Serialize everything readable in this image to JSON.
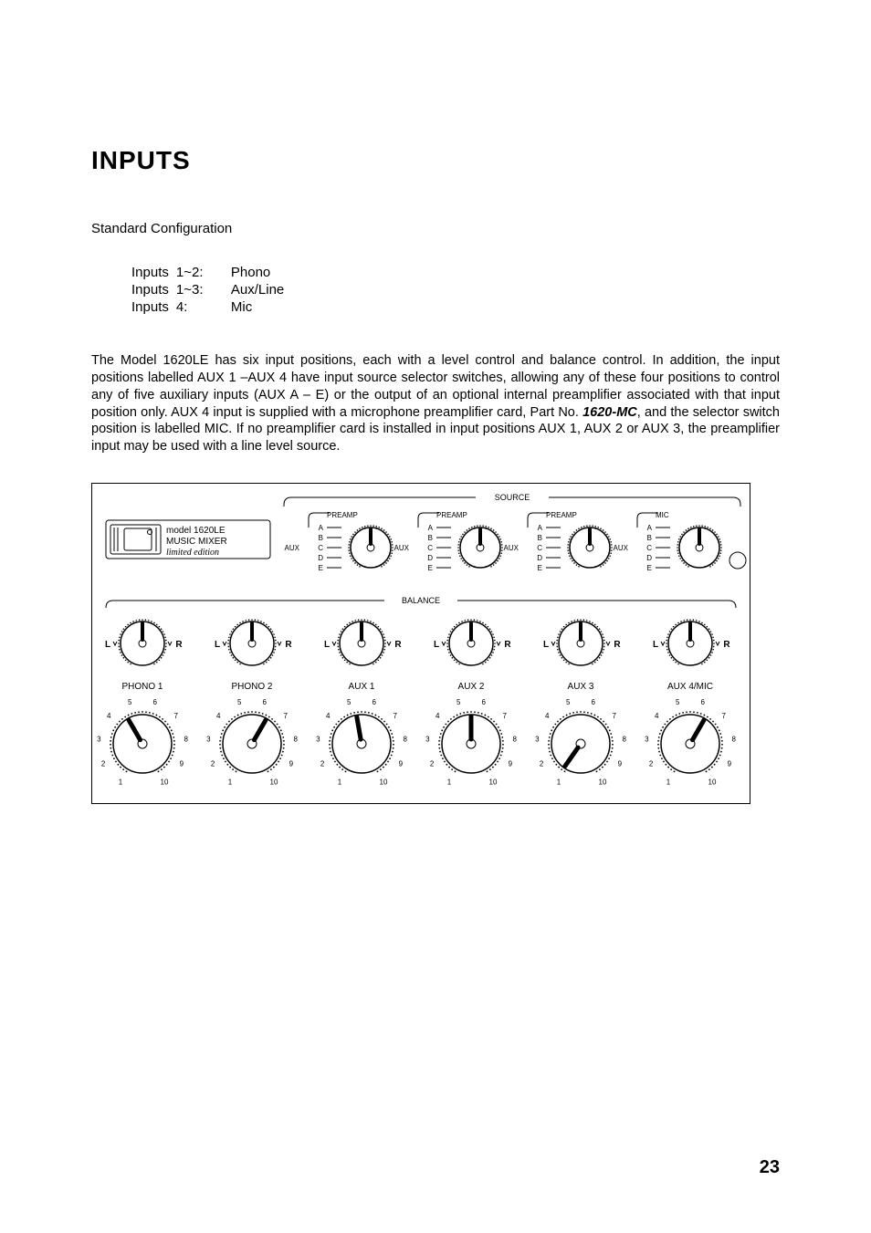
{
  "heading": "INPUTS",
  "subheading": "Standard Configuration",
  "config": [
    {
      "label": "Inputs",
      "range": "1~2:",
      "type": "Phono"
    },
    {
      "label": "Inputs",
      "range": "1~3:",
      "type": "Aux/Line"
    },
    {
      "label": "Inputs",
      "range": "4:",
      "type": "Mic"
    }
  ],
  "paragraph_parts": {
    "a": "The Model 1620LE has six input positions, each with a level control and balance control.  In addition, the input positions labelled AUX 1 –AUX 4 have input source selector switches, allowing any of these four positions to control any of five auxiliary inputs (AUX A – E) or the output of an optional internal preamplifier associated with that input position only.  AUX 4 input is supplied with a microphone preamplifier card, Part No. ",
    "b": "1620-MC",
    "c": ", and the selector switch position is labelled MIC.  If no preamplifier card is installed in input positions AUX 1, AUX 2 or AUX 3, the preamplifier input may be used with a line level source."
  },
  "page_number": "23",
  "diagram": {
    "source_label": "SOURCE",
    "balance_label": "BALANCE",
    "logo": {
      "line1": "model 1620LE",
      "line2": "MUSIC MIXER",
      "line3": "limited edition"
    },
    "source_cols": [
      {
        "top": "PREAMP",
        "rows": [
          "A",
          "B",
          "C",
          "D",
          "E"
        ],
        "aux": "AUX",
        "pointer_angle": 0,
        "has_small_knob": false
      },
      {
        "top": "PREAMP",
        "rows": [
          "A",
          "B",
          "C",
          "D",
          "E"
        ],
        "aux": "AUX",
        "pointer_angle": 0,
        "has_small_knob": false
      },
      {
        "top": "PREAMP",
        "rows": [
          "A",
          "B",
          "C",
          "D",
          "E"
        ],
        "aux": "AUX",
        "pointer_angle": 0,
        "has_small_knob": false
      },
      {
        "top": "MIC",
        "rows": [
          "A",
          "B",
          "C",
          "D",
          "E"
        ],
        "aux": "AUX",
        "pointer_angle": 0,
        "has_small_knob": true
      }
    ],
    "balance_knobs": [
      {
        "L": "L",
        "R": "R",
        "angle": 0
      },
      {
        "L": "L",
        "R": "R",
        "angle": 0
      },
      {
        "L": "L",
        "R": "R",
        "angle": 0
      },
      {
        "L": "L",
        "R": "R",
        "angle": 0
      },
      {
        "L": "L",
        "R": "R",
        "angle": 0
      },
      {
        "L": "L",
        "R": "R",
        "angle": 0
      }
    ],
    "level_knobs": [
      {
        "label": "PHONO 1",
        "angle": -30
      },
      {
        "label": "PHONO 2",
        "angle": 30
      },
      {
        "label": "AUX 1",
        "angle": -10
      },
      {
        "label": "AUX 2",
        "angle": 0
      },
      {
        "label": "AUX 3",
        "angle": -145
      },
      {
        "label": "AUX 4/MIC",
        "angle": 30
      }
    ],
    "level_numbers": [
      "1",
      "2",
      "3",
      "4",
      "5",
      "6",
      "7",
      "8",
      "9",
      "10"
    ]
  }
}
